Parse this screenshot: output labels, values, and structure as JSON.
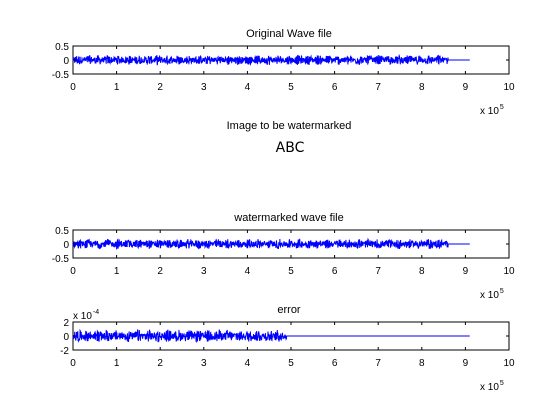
{
  "figure": {
    "panel1": {
      "title": "Original Wave file"
    },
    "image_panel": {
      "title": "Image to be watermarked",
      "image_text": "ABC"
    },
    "panel2": {
      "title": "watermarked wave file"
    },
    "panel3": {
      "title": "error"
    }
  },
  "chart_data": [
    {
      "type": "line",
      "title": "Original Wave file",
      "xlim": [
        0,
        1000000
      ],
      "ylim": [
        -0.5,
        0.5
      ],
      "xticks": [
        "0",
        "1",
        "2",
        "3",
        "4",
        "5",
        "6",
        "7",
        "8",
        "9",
        "10"
      ],
      "yticks": [
        "0.5",
        "0",
        "-0.5"
      ],
      "x_exponent_label": "x 10",
      "x_exponent_power": "5",
      "signal": {
        "length": 910000,
        "amplitude": 0.2,
        "active_until": 860000
      },
      "color": "#0000ff"
    },
    {
      "type": "line",
      "title": "watermarked wave file",
      "xlim": [
        0,
        1000000
      ],
      "ylim": [
        -0.5,
        0.5
      ],
      "xticks": [
        "0",
        "1",
        "2",
        "3",
        "4",
        "5",
        "6",
        "7",
        "8",
        "9",
        "10"
      ],
      "yticks": [
        "0.5",
        "0",
        "-0.5"
      ],
      "x_exponent_label": "x 10",
      "x_exponent_power": "5",
      "signal": {
        "length": 910000,
        "amplitude": 0.2,
        "active_until": 860000
      },
      "color": "#0000ff"
    },
    {
      "type": "line",
      "title": "error",
      "xlim": [
        0,
        1000000
      ],
      "ylim": [
        -0.0002,
        0.0002
      ],
      "xticks": [
        "0",
        "1",
        "2",
        "3",
        "4",
        "5",
        "6",
        "7",
        "8",
        "9",
        "10"
      ],
      "yticks": [
        "2",
        "0",
        "-2"
      ],
      "y_exponent_label": "x 10",
      "y_exponent_power": "-4",
      "x_exponent_label": "x 10",
      "x_exponent_power": "5",
      "signal": {
        "length": 910000,
        "amplitude": 0.0001,
        "active_until": 490000
      },
      "color": "#0000ff"
    }
  ]
}
